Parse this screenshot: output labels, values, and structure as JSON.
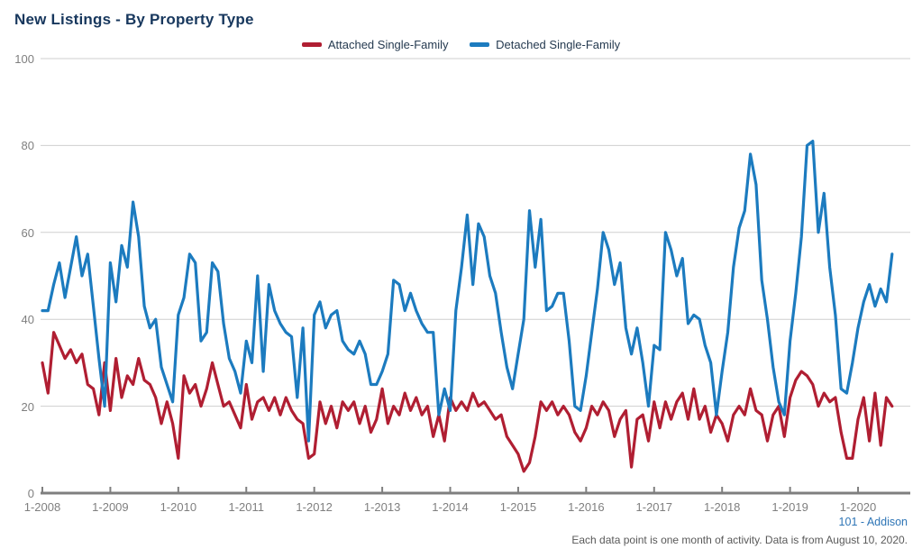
{
  "title": "New Listings - By Property Type",
  "legend": [
    {
      "label": "Attached Single-Family",
      "color": "#B01E32"
    },
    {
      "label": "Detached Single-Family",
      "color": "#1C7BBF"
    }
  ],
  "footer": {
    "location_link": "101 - Addison",
    "note": "Each data point is one month of activity. Data is from August 10, 2020."
  },
  "colors": {
    "title": "#17375D",
    "gridline": "#CFCFCF",
    "axis": "#7F7F7F",
    "tick_label": "#7F7F7F",
    "attached": "#B01E32",
    "detached": "#1C7BBF",
    "link": "#2E75B6",
    "note": "#595959"
  },
  "chart_data": {
    "type": "line",
    "title": "New Listings - By Property Type",
    "x_unit": "month",
    "x_start": "2008-01",
    "x_end": "2020-07",
    "x_tick_labels": [
      "1-2008",
      "1-2009",
      "1-2010",
      "1-2011",
      "1-2012",
      "1-2013",
      "1-2014",
      "1-2015",
      "1-2016",
      "1-2017",
      "1-2018",
      "1-2019",
      "1-2020"
    ],
    "x_tick_month_indices": [
      0,
      12,
      24,
      36,
      48,
      60,
      72,
      84,
      96,
      108,
      120,
      132,
      144
    ],
    "ylim": [
      0,
      100
    ],
    "y_ticks": [
      0,
      20,
      40,
      60,
      80,
      100
    ],
    "grid": true,
    "legend_position": "top-center",
    "series": [
      {
        "name": "Attached Single-Family",
        "color": "#B01E32",
        "values": [
          30,
          23,
          37,
          34,
          31,
          33,
          30,
          32,
          25,
          24,
          18,
          30,
          19,
          31,
          22,
          27,
          25,
          31,
          26,
          25,
          22,
          16,
          21,
          16,
          8,
          27,
          23,
          25,
          20,
          24,
          30,
          25,
          20,
          21,
          18,
          15,
          25,
          17,
          21,
          22,
          19,
          22,
          18,
          22,
          19,
          17,
          16,
          8,
          9,
          21,
          16,
          20,
          15,
          21,
          19,
          21,
          16,
          20,
          14,
          17,
          24,
          16,
          20,
          18,
          23,
          19,
          22,
          18,
          20,
          13,
          18,
          12,
          22,
          19,
          21,
          19,
          23,
          20,
          21,
          19,
          17,
          18,
          13,
          11,
          9,
          5,
          7,
          13,
          21,
          19,
          21,
          18,
          20,
          18,
          14,
          12,
          15,
          20,
          18,
          21,
          19,
          13,
          17,
          19,
          6,
          17,
          18,
          12,
          21,
          15,
          21,
          17,
          21,
          23,
          17,
          24,
          17,
          20,
          14,
          18,
          16,
          12,
          18,
          20,
          18,
          24,
          19,
          18,
          12,
          18,
          20,
          13,
          22,
          26,
          28,
          27,
          25,
          20,
          23,
          21,
          22,
          14,
          8,
          8,
          17,
          22,
          12,
          23,
          11,
          22,
          20
        ]
      },
      {
        "name": "Detached Single-Family",
        "color": "#1C7BBF",
        "values": [
          42,
          42,
          48,
          53,
          45,
          52,
          59,
          50,
          55,
          43,
          31,
          20,
          53,
          44,
          57,
          52,
          67,
          59,
          43,
          38,
          40,
          29,
          25,
          21,
          41,
          45,
          55,
          53,
          35,
          37,
          53,
          51,
          39,
          31,
          28,
          23,
          35,
          30,
          50,
          28,
          48,
          42,
          39,
          37,
          36,
          22,
          38,
          12,
          41,
          44,
          38,
          41,
          42,
          35,
          33,
          32,
          35,
          32,
          25,
          25,
          28,
          32,
          49,
          48,
          42,
          46,
          42,
          39,
          37,
          37,
          18,
          24,
          19,
          42,
          52,
          64,
          48,
          62,
          59,
          50,
          46,
          37,
          29,
          24,
          32,
          40,
          65,
          52,
          63,
          42,
          43,
          46,
          46,
          35,
          20,
          19,
          27,
          37,
          47,
          60,
          56,
          48,
          53,
          38,
          32,
          38,
          30,
          20,
          34,
          33,
          60,
          56,
          50,
          54,
          39,
          41,
          40,
          34,
          30,
          18,
          28,
          37,
          52,
          61,
          65,
          78,
          71,
          49,
          40,
          29,
          21,
          18,
          35,
          46,
          59,
          80,
          81,
          60,
          69,
          52,
          41,
          24,
          23,
          30,
          38,
          44,
          48,
          43,
          47,
          44,
          55
        ]
      }
    ]
  }
}
